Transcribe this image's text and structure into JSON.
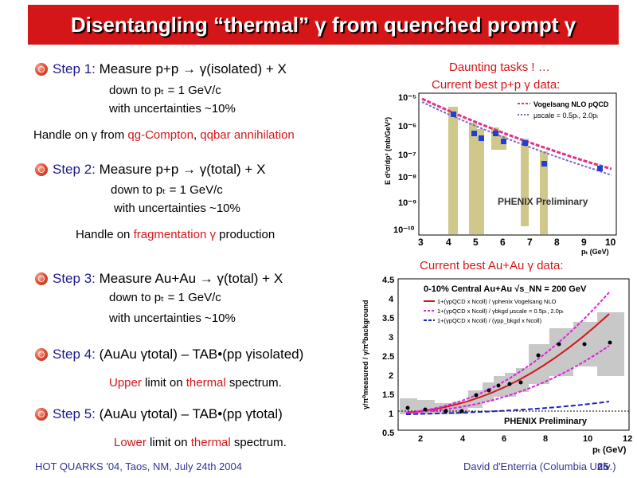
{
  "title": "Disentangling “thermal” γ from quenched prompt γ",
  "steps": [
    {
      "label": "Step 1:",
      "text": "Measure p+p → γ(isolated) + X",
      "line2": "down to pₜ = 1 GeV/c",
      "line3": "with uncertainties ~10%"
    },
    {
      "label": "Step 2:",
      "text": "Measure p+p → γ(total) + X",
      "line2": "down to pₜ = 1 GeV/c",
      "line3": "with uncertainties ~10%"
    },
    {
      "label": "Step 3:",
      "text": "Measure Au+Au → γ(total) + X",
      "line2": "down to pₜ = 1 GeV/c",
      "line3": "with uncertainties ~10%"
    },
    {
      "label": "Step 4:",
      "text": "(AuAu γtotal) – TAB•(pp γisolated)",
      "note_red": "Upper",
      "note_rest": " limit on ",
      "note_red2": "thermal",
      "note_end": " spectrum."
    },
    {
      "label": "Step 5:",
      "text": "(AuAu γtotal) – TAB•(pp γtotal)",
      "note_red": "Lower",
      "note_rest": " limit on ",
      "note_red2": "thermal",
      "note_end": " spectrum."
    }
  ],
  "handle1": {
    "pre": "Handle on γ from ",
    "red1": "qg-Compton",
    "mid": ", ",
    "red2": "qqbar annihilation"
  },
  "handle2": {
    "pre": "Handle on ",
    "red1": "fragmentation γ",
    "post": " production"
  },
  "right": {
    "daunting": "Daunting tasks ! …",
    "pp_caption": "Current best p+p  γ data:",
    "auau_caption": "Current best Au+Au γ data:"
  },
  "pp_plot": {
    "ylabel": "E d³σ/dp³ (mb/GeV²)",
    "xlabel": "pₜ (GeV)",
    "legend1": "Vogelsang NLO pQCD",
    "legend2": "μscale = 0.5pₜ, 2.0pₜ",
    "watermark": "PHENIX Preliminary",
    "x_ticks": [
      "3",
      "4",
      "5",
      "6",
      "7",
      "8",
      "9",
      "10"
    ],
    "y_ticks": [
      "10⁻⁵",
      "10⁻⁶",
      "10⁻⁷",
      "10⁻⁸",
      "10⁻⁹",
      "10⁻¹⁰"
    ]
  },
  "auau_plot": {
    "header": "0-10% Central  Au+Au  √s_NN = 200 GeV",
    "legend1": "1+(γpQCD x Ncoll) / γphenix  Vogelsang NLO",
    "legend2": "1+(γpQCD x Ncoll) / γbkgd  μscale = 0.5pₜ, 2.0pₜ",
    "legend3": "1+(γpQCD x Ncoll) / (γpp_bkgd x Ncoll)",
    "ylabel": "γ/π⁰measured / γ/π⁰background",
    "xlabel": "pₜ (GeV)",
    "watermark": "PHENIX Preliminary",
    "x_ticks": [
      "2",
      "4",
      "6",
      "8",
      "10",
      "12"
    ],
    "y_ticks": [
      "0.5",
      "1",
      "1.5",
      "2",
      "2.5",
      "3",
      "3.5",
      "4",
      "4.5"
    ]
  },
  "footer": {
    "left": "HOT QUARKS '04, Taos, NM, July 24th 2004",
    "right": "David d'Enterria (Columbia Univ.)",
    "page": "25"
  }
}
